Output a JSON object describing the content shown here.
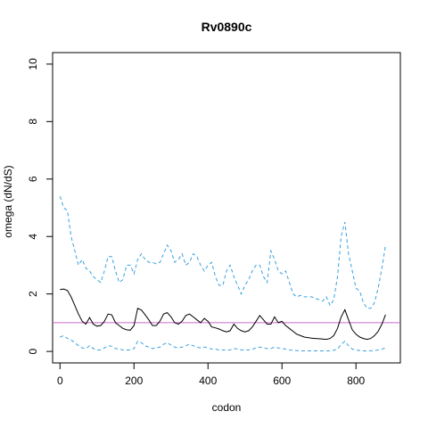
{
  "chart_data": {
    "type": "line",
    "title": "Rv0890c",
    "xlabel": "codon",
    "ylabel": "omega (dN/dS)",
    "xlim": [
      -20,
      920
    ],
    "ylim": [
      -0.4,
      10.4
    ],
    "xticks": [
      0,
      200,
      400,
      600,
      800
    ],
    "yticks": [
      0,
      2,
      4,
      6,
      8,
      10
    ],
    "grid": false,
    "reference_line": {
      "y": 1,
      "color": "#cc66cc"
    },
    "colors": {
      "omega": "#000000",
      "ci": "#3aa0e0"
    },
    "series": [
      {
        "key": "omega",
        "style": "solid",
        "x": [
          0,
          10,
          20,
          30,
          40,
          50,
          60,
          70,
          80,
          90,
          100,
          110,
          120,
          130,
          140,
          150,
          160,
          170,
          180,
          190,
          200,
          210,
          220,
          230,
          240,
          250,
          260,
          270,
          280,
          290,
          300,
          310,
          320,
          330,
          340,
          350,
          360,
          370,
          380,
          390,
          400,
          410,
          420,
          430,
          440,
          450,
          460,
          470,
          480,
          490,
          500,
          510,
          520,
          530,
          540,
          550,
          560,
          570,
          580,
          590,
          600,
          610,
          620,
          630,
          640,
          650,
          660,
          670,
          680,
          690,
          700,
          710,
          720,
          730,
          740,
          750,
          760,
          770,
          780,
          790,
          800,
          810,
          820,
          830,
          840,
          850,
          860,
          870,
          880
        ],
        "values": [
          2.15,
          2.17,
          2.12,
          1.9,
          1.6,
          1.3,
          1.05,
          0.95,
          1.18,
          0.95,
          0.88,
          0.9,
          1.05,
          1.3,
          1.27,
          1.0,
          0.9,
          0.8,
          0.75,
          0.74,
          0.9,
          1.5,
          1.44,
          1.28,
          1.1,
          0.9,
          0.9,
          1.05,
          1.3,
          1.35,
          1.2,
          1.0,
          0.95,
          1.05,
          1.25,
          1.3,
          1.2,
          1.1,
          1.0,
          1.15,
          1.05,
          0.85,
          0.82,
          0.78,
          0.72,
          0.68,
          0.72,
          0.95,
          0.8,
          0.72,
          0.68,
          0.72,
          0.85,
          1.05,
          1.25,
          1.1,
          0.95,
          0.95,
          1.2,
          1.0,
          1.05,
          0.9,
          0.8,
          0.7,
          0.6,
          0.55,
          0.5,
          0.48,
          0.46,
          0.45,
          0.44,
          0.43,
          0.42,
          0.45,
          0.55,
          0.8,
          1.2,
          1.45,
          1.1,
          0.75,
          0.6,
          0.5,
          0.45,
          0.42,
          0.45,
          0.55,
          0.7,
          0.95,
          1.28
        ]
      },
      {
        "key": "upper",
        "style": "dashed",
        "x": [
          0,
          10,
          20,
          30,
          40,
          50,
          60,
          70,
          80,
          90,
          100,
          110,
          120,
          130,
          140,
          150,
          160,
          170,
          180,
          190,
          200,
          210,
          220,
          230,
          240,
          250,
          260,
          270,
          280,
          290,
          300,
          310,
          320,
          330,
          340,
          350,
          360,
          370,
          380,
          390,
          400,
          410,
          420,
          430,
          440,
          450,
          460,
          470,
          480,
          490,
          500,
          510,
          520,
          530,
          540,
          550,
          560,
          570,
          580,
          590,
          600,
          610,
          620,
          630,
          640,
          650,
          660,
          670,
          680,
          690,
          700,
          710,
          720,
          730,
          740,
          750,
          760,
          770,
          780,
          790,
          800,
          810,
          820,
          830,
          840,
          850,
          860,
          870,
          880
        ],
        "values": [
          5.4,
          5.0,
          4.9,
          4.0,
          3.5,
          3.0,
          3.2,
          2.9,
          2.8,
          2.6,
          2.5,
          2.4,
          2.8,
          3.3,
          3.3,
          2.8,
          2.4,
          2.5,
          3.0,
          3.0,
          2.7,
          3.2,
          3.4,
          3.2,
          3.1,
          3.1,
          3.05,
          3.1,
          3.4,
          3.7,
          3.5,
          3.1,
          3.2,
          3.4,
          3.0,
          3.1,
          3.4,
          3.3,
          3.0,
          2.8,
          3.0,
          3.1,
          2.6,
          2.3,
          2.3,
          2.8,
          3.0,
          2.6,
          2.3,
          2.0,
          2.3,
          2.5,
          2.8,
          3.0,
          3.0,
          2.6,
          2.4,
          3.5,
          3.2,
          2.8,
          2.7,
          2.8,
          2.4,
          2.0,
          1.9,
          1.95,
          1.9,
          1.9,
          1.9,
          1.85,
          1.8,
          1.75,
          1.9,
          1.6,
          1.8,
          2.6,
          4.0,
          4.5,
          3.4,
          2.8,
          2.2,
          2.1,
          1.7,
          1.5,
          1.5,
          1.7,
          2.2,
          2.9,
          3.7
        ]
      },
      {
        "key": "lower",
        "style": "dashed",
        "x": [
          0,
          10,
          20,
          30,
          40,
          50,
          60,
          70,
          80,
          90,
          100,
          110,
          120,
          130,
          140,
          150,
          160,
          170,
          180,
          190,
          200,
          210,
          220,
          230,
          240,
          250,
          260,
          270,
          280,
          290,
          300,
          310,
          320,
          330,
          340,
          350,
          360,
          370,
          380,
          390,
          400,
          410,
          420,
          430,
          440,
          450,
          460,
          470,
          480,
          490,
          500,
          510,
          520,
          530,
          540,
          550,
          560,
          570,
          580,
          590,
          600,
          610,
          620,
          630,
          640,
          650,
          660,
          670,
          680,
          690,
          700,
          710,
          720,
          730,
          740,
          750,
          760,
          770,
          780,
          790,
          800,
          810,
          820,
          830,
          840,
          850,
          860,
          870,
          880
        ],
        "values": [
          0.5,
          0.55,
          0.45,
          0.4,
          0.3,
          0.2,
          0.12,
          0.1,
          0.2,
          0.1,
          0.05,
          0.05,
          0.12,
          0.2,
          0.18,
          0.1,
          0.08,
          0.05,
          0.05,
          0.05,
          0.1,
          0.35,
          0.3,
          0.2,
          0.15,
          0.1,
          0.12,
          0.15,
          0.25,
          0.3,
          0.22,
          0.15,
          0.12,
          0.15,
          0.2,
          0.25,
          0.2,
          0.15,
          0.12,
          0.15,
          0.12,
          0.08,
          0.08,
          0.05,
          0.05,
          0.05,
          0.05,
          0.1,
          0.08,
          0.05,
          0.05,
          0.05,
          0.08,
          0.12,
          0.15,
          0.12,
          0.1,
          0.1,
          0.15,
          0.12,
          0.1,
          0.08,
          0.05,
          0.04,
          0.03,
          0.02,
          0.02,
          0.02,
          0.02,
          0.02,
          0.02,
          0.02,
          0.02,
          0.02,
          0.04,
          0.08,
          0.25,
          0.35,
          0.2,
          0.08,
          0.05,
          0.03,
          0.02,
          0.02,
          0.02,
          0.03,
          0.05,
          0.08,
          0.12
        ]
      }
    ]
  }
}
